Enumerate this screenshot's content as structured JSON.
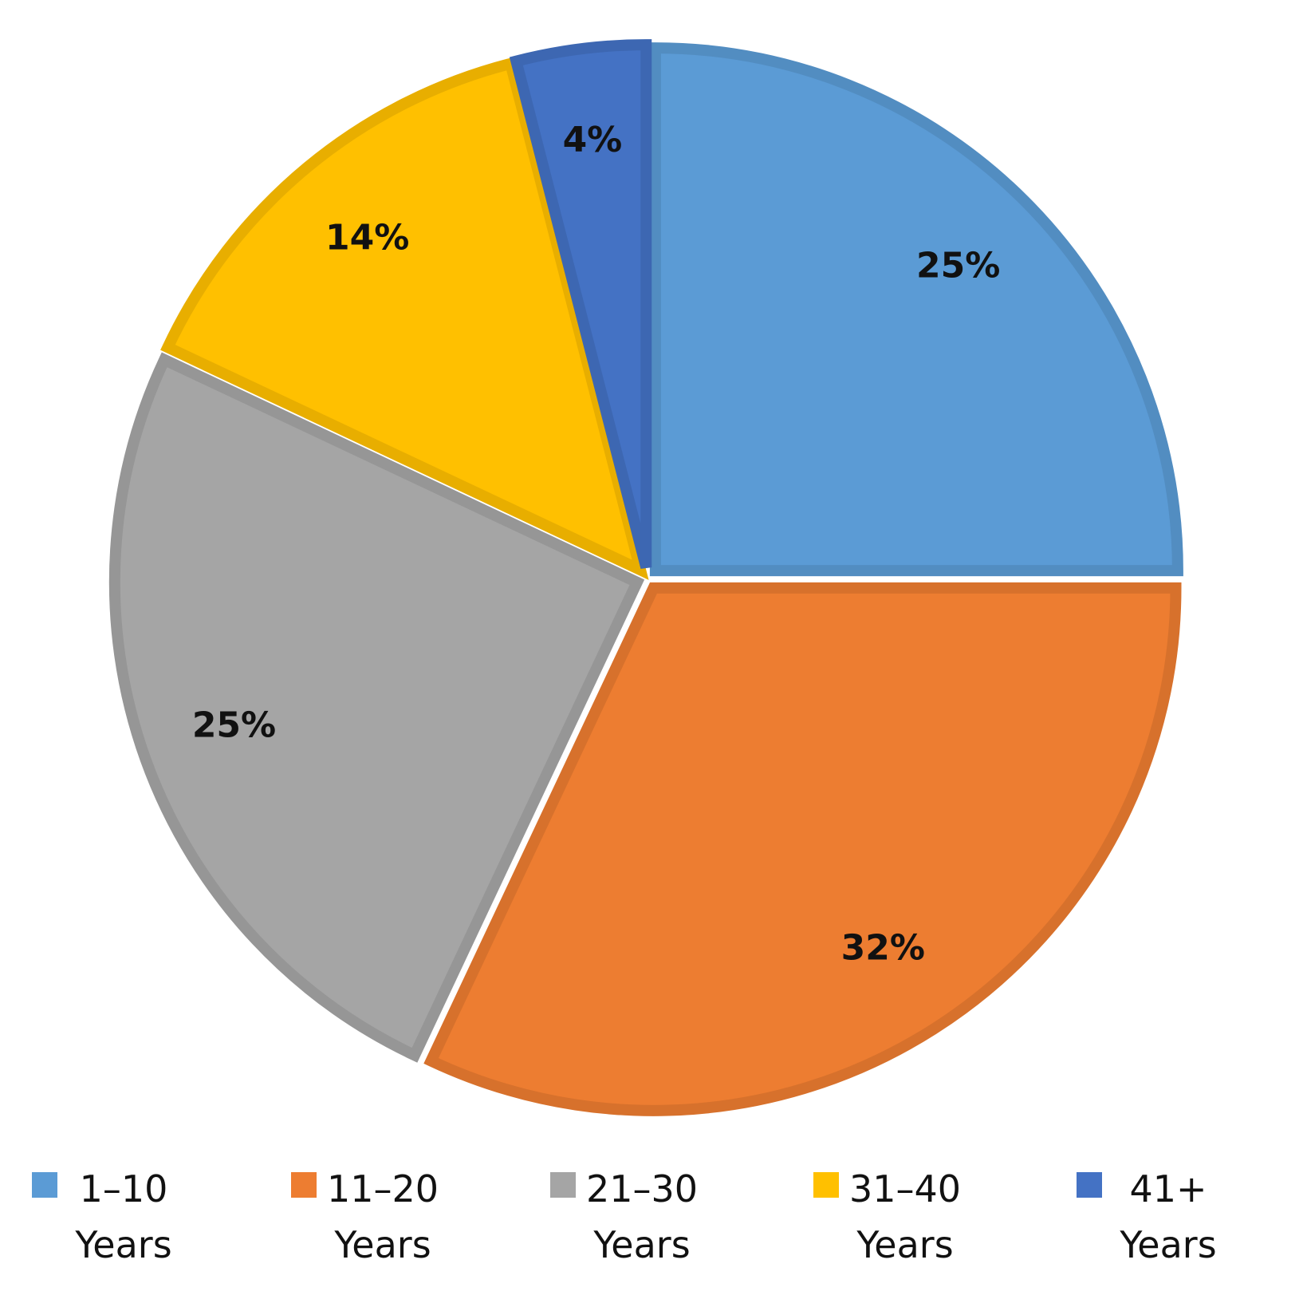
{
  "chart_data": {
    "type": "pie",
    "categories": [
      "1–10 Years",
      "11–20 Years",
      "21–30 Years",
      "31–40 Years",
      "41+ Years"
    ],
    "values": [
      25,
      32,
      25,
      14,
      4
    ],
    "value_labels": [
      "25%",
      "32%",
      "25%",
      "14%",
      "4%"
    ],
    "colors": [
      "#5b9bd5",
      "#ed7d31",
      "#a5a5a5",
      "#ffc000",
      "#4472c4"
    ],
    "legend": "bottom"
  }
}
